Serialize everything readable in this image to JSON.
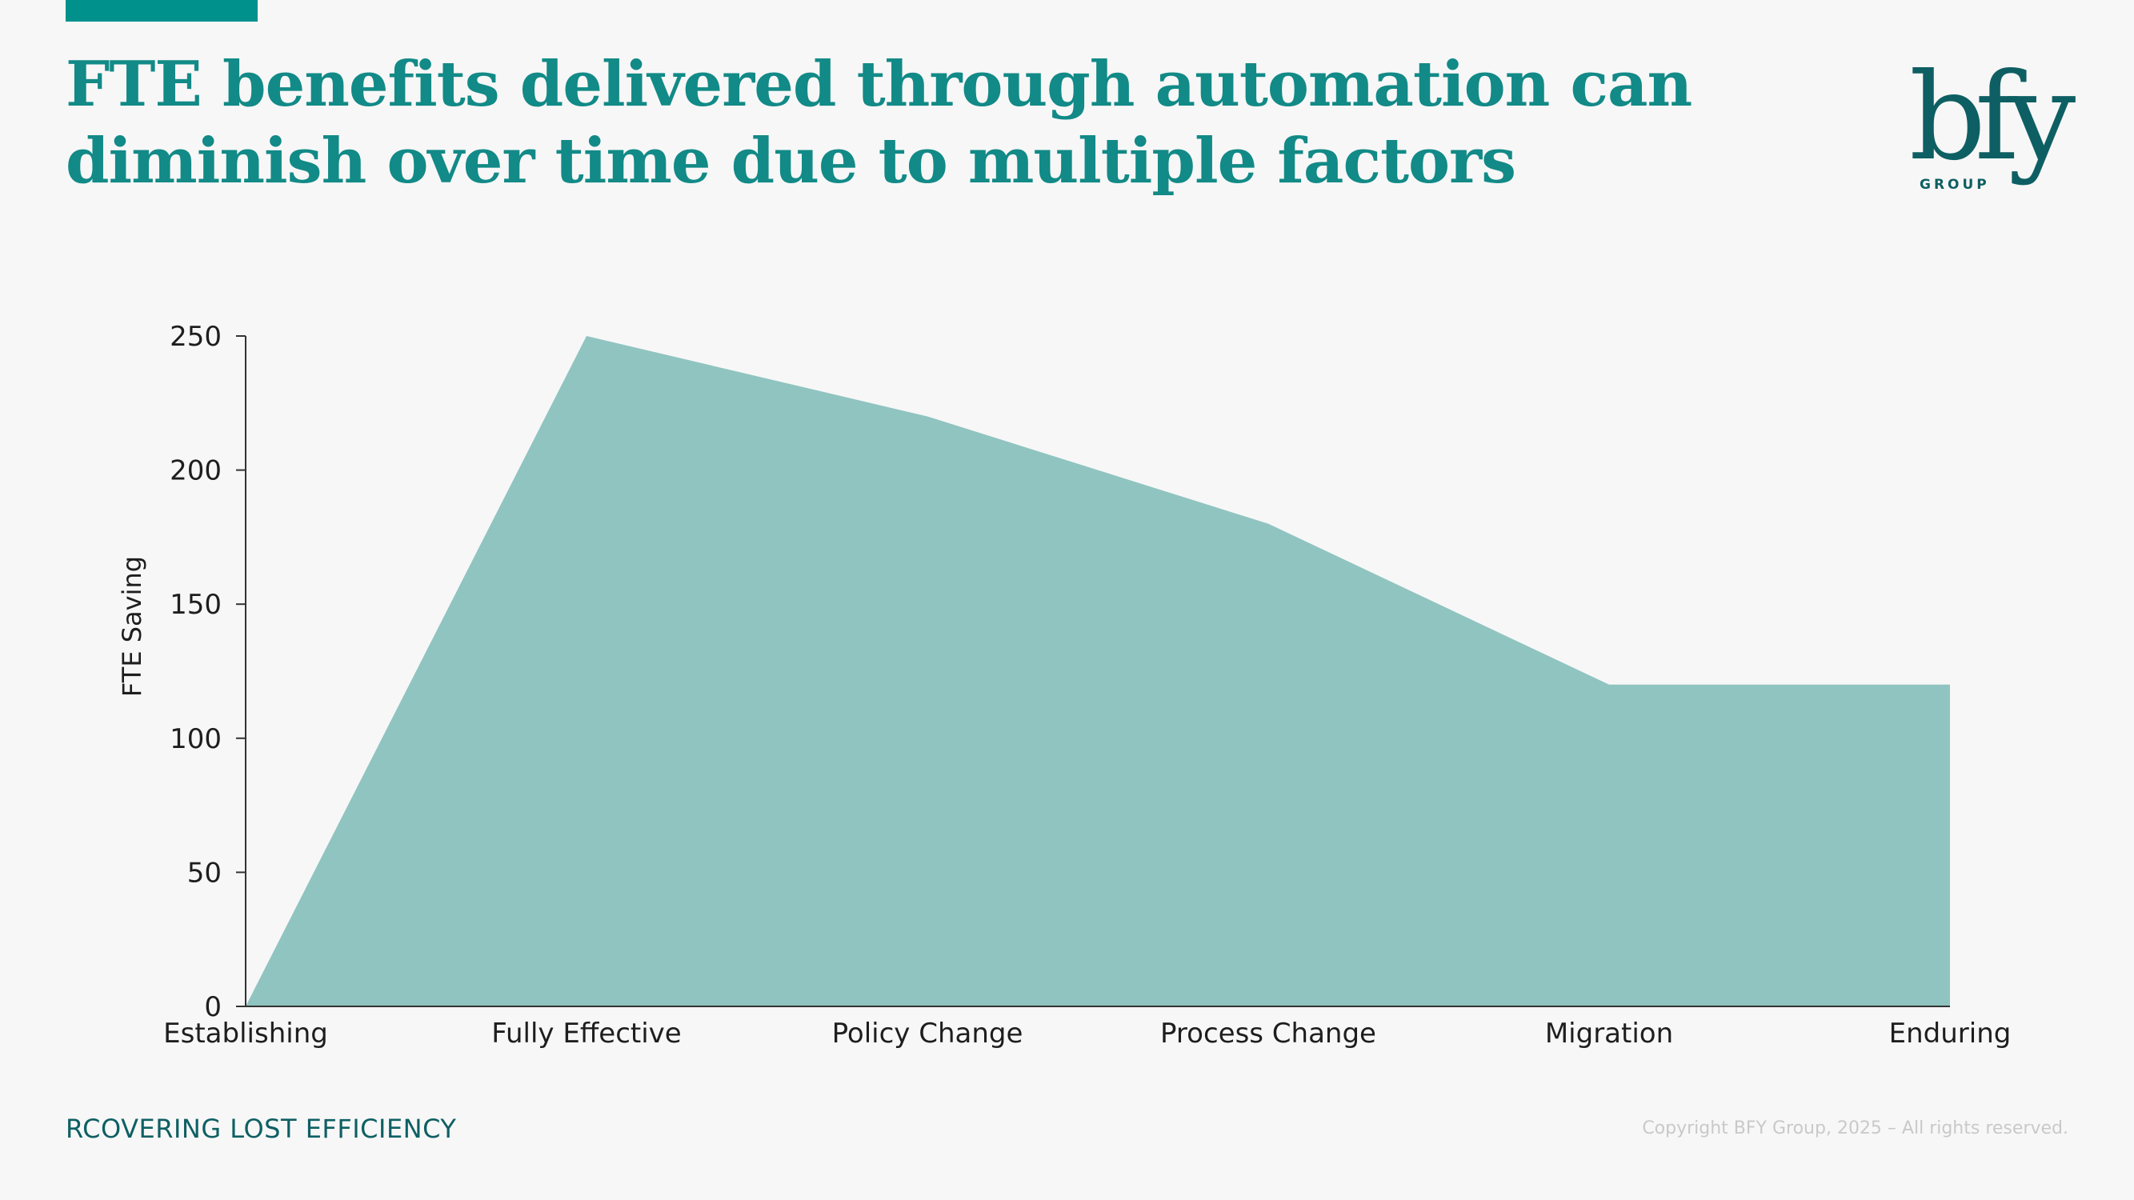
{
  "slide": {
    "title_line1": "FTE benefits delivered through automation can",
    "title_line2": "diminish over time due to multiple factors",
    "footer_left": "RCOVERING LOST EFFICIENCY",
    "footer_right": "Copyright BFY Group, 2025 – All rights reserved."
  },
  "logo": {
    "mark": "bfy",
    "sub": "GROUP",
    "color": "#0e5f63"
  },
  "colors": {
    "accent": "#00918d",
    "title": "#128a87",
    "area_fill": "#90c4c0"
  },
  "chart_data": {
    "type": "area",
    "categories": [
      "Establishing",
      "Fully Effective",
      "Policy Change",
      "Process Change",
      "Migration",
      "Enduring"
    ],
    "series": [
      {
        "values": [
          0,
          250,
          220,
          180,
          120,
          120
        ]
      }
    ],
    "ylabel": "FTE Saving",
    "ylim": [
      0,
      250
    ],
    "yticks": [
      0,
      50,
      100,
      150,
      200,
      250
    ],
    "grid": false,
    "legend": "none"
  }
}
